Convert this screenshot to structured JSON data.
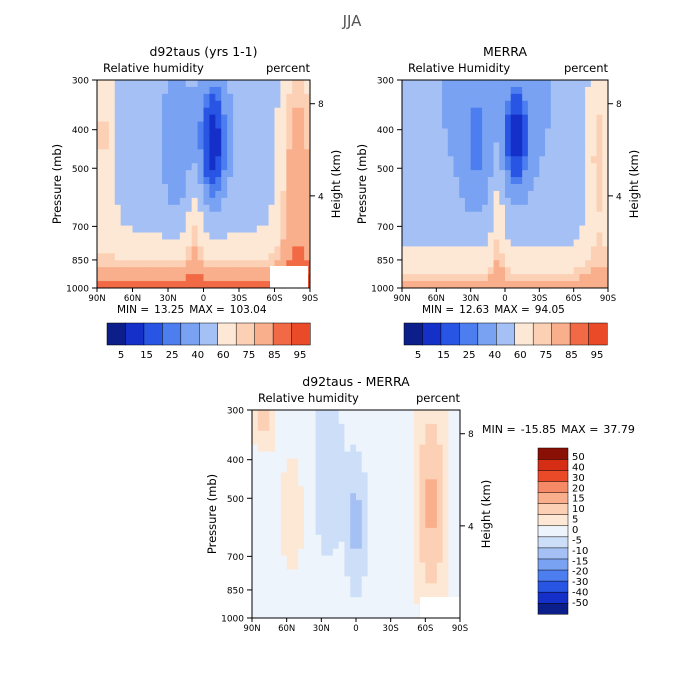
{
  "figure_title": "JJA",
  "colors": {
    "blue_scale": [
      "#0b1e8a",
      "#1430c8",
      "#2855e4",
      "#4d7ef0",
      "#79a2f3",
      "#a4c0f4",
      "#cddff8",
      "#eef4fc"
    ],
    "red_scale": [
      "#fde8d6",
      "#fcd0b4",
      "#f9ae8c",
      "#f68a66",
      "#f26a45",
      "#ea4a28",
      "#d52e14",
      "#b41d0c",
      "#8a1006"
    ],
    "missing": "#ffffff"
  },
  "chart_data": [
    {
      "type": "heatmap",
      "id": "model",
      "title": "d92taus (yrs 1-1)",
      "left_label": "Relative humidity",
      "right_label": "percent",
      "xlabel": "",
      "ylabel": "Pressure (mb)",
      "y2label": "Height (km)",
      "x_ticks": [
        "90N",
        "60N",
        "30N",
        "0",
        "30S",
        "60S",
        "90S"
      ],
      "y_ticks": [
        "300",
        "400",
        "500",
        "700",
        "850",
        "1000"
      ],
      "y_tick_values": [
        300,
        400,
        500,
        700,
        850,
        1000
      ],
      "y2_ticks": [
        "8",
        "4"
      ],
      "y2_tick_values": [
        8,
        4
      ],
      "ylim": [
        1000,
        300
      ],
      "xlim": [
        90,
        -90
      ],
      "stats": {
        "min_label": "MIN =",
        "min": "13.25",
        "max_label": "MAX =",
        "max": "103.04"
      },
      "colorbar_labels": [
        "5",
        "15",
        "25",
        "40",
        "60",
        "75",
        "85",
        "95"
      ],
      "colorbar_levels": [
        0,
        10,
        20,
        30,
        35,
        45,
        55,
        65,
        70,
        80,
        90,
        100
      ]
    },
    {
      "type": "heatmap",
      "id": "merra",
      "title": "MERRA",
      "left_label": "Relative Humidity",
      "right_label": "percent",
      "xlabel": "",
      "ylabel": "Pressure (mb)",
      "y2label": "Height (km)",
      "x_ticks": [
        "90N",
        "60N",
        "30N",
        "0",
        "30S",
        "60S",
        "90S"
      ],
      "y_ticks": [
        "300",
        "400",
        "500",
        "700",
        "850",
        "1000"
      ],
      "y_tick_values": [
        300,
        400,
        500,
        700,
        850,
        1000
      ],
      "y2_ticks": [
        "8",
        "4"
      ],
      "y2_tick_values": [
        8,
        4
      ],
      "ylim": [
        1000,
        300
      ],
      "xlim": [
        90,
        -90
      ],
      "stats": {
        "min_label": "MIN =",
        "min": "12.63",
        "max_label": "MAX =",
        "max": "94.05"
      },
      "colorbar_labels": [
        "5",
        "15",
        "25",
        "40",
        "60",
        "75",
        "85",
        "95"
      ],
      "colorbar_levels": [
        0,
        10,
        20,
        30,
        35,
        45,
        55,
        65,
        70,
        80,
        90,
        100
      ]
    },
    {
      "type": "heatmap",
      "id": "diff",
      "title": "d92taus - MERRA",
      "left_label": "Relative humidity",
      "right_label": "percent",
      "xlabel": "",
      "ylabel": "Pressure (mb)",
      "y2label": "Height (km)",
      "x_ticks": [
        "90N",
        "60N",
        "30N",
        "0",
        "30S",
        "60S",
        "90S"
      ],
      "y_ticks": [
        "300",
        "400",
        "500",
        "700",
        "850",
        "1000"
      ],
      "y_tick_values": [
        300,
        400,
        500,
        700,
        850,
        1000
      ],
      "y2_ticks": [
        "8",
        "4"
      ],
      "y2_tick_values": [
        8,
        4
      ],
      "ylim": [
        1000,
        300
      ],
      "xlim": [
        90,
        -90
      ],
      "stats": {
        "min_label": "MIN =",
        "min": "-15.85",
        "max_label": "MAX =",
        "max": "37.79"
      },
      "colorbar_labels": [
        "50",
        "40",
        "30",
        "20",
        "15",
        "10",
        "5",
        "0",
        "-5",
        "-10",
        "-15",
        "-20",
        "-30",
        "-40",
        "-50"
      ],
      "colorbar_levels": [
        -50,
        -40,
        -30,
        -20,
        -15,
        -10,
        -5,
        0,
        5,
        10,
        15,
        20,
        30,
        40,
        50
      ]
    }
  ]
}
